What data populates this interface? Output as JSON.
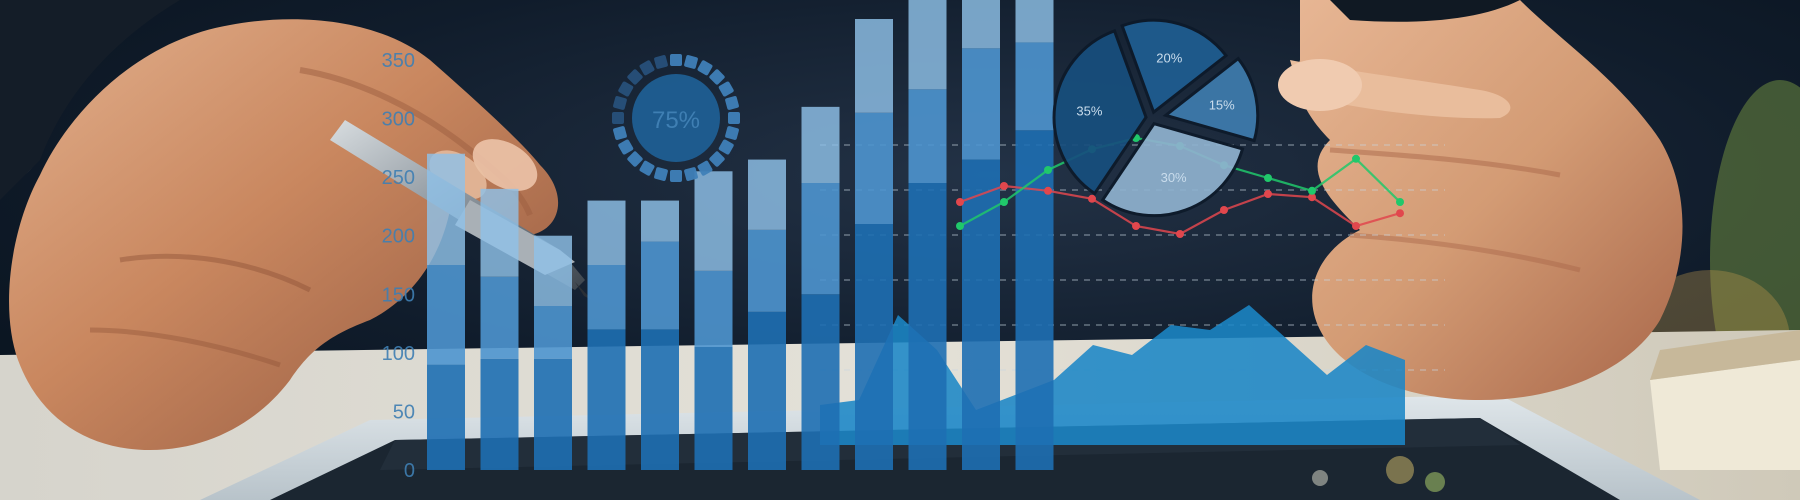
{
  "scene": {
    "description_tags": [
      "hands",
      "pen",
      "tablet",
      "holographic-charts"
    ]
  },
  "bar_overlay": {
    "y_ticks": [
      "0",
      "50",
      "100",
      "150",
      "200",
      "250",
      "300",
      "350"
    ],
    "bars": [
      {
        "segments": [
          90,
          85,
          95
        ]
      },
      {
        "segments": [
          95,
          70,
          75
        ]
      },
      {
        "segments": [
          95,
          45,
          60
        ]
      },
      {
        "segments": [
          120,
          55,
          55
        ]
      },
      {
        "segments": [
          120,
          75,
          35
        ]
      },
      {
        "segments": [
          105,
          65,
          85
        ]
      },
      {
        "segments": [
          135,
          70,
          60
        ]
      },
      {
        "segments": [
          150,
          95,
          65
        ]
      },
      {
        "segments": [
          210,
          95,
          80
        ]
      },
      {
        "segments": [
          245,
          80,
          80
        ]
      },
      {
        "segments": [
          265,
          95,
          85
        ]
      },
      {
        "segments": [
          290,
          75,
          90
        ]
      }
    ]
  },
  "gauge": {
    "label": "75%",
    "value": 0.75
  },
  "pie": {
    "slices": [
      {
        "label": "20%",
        "value": 20,
        "color": "#1f5e92"
      },
      {
        "label": "15%",
        "value": 15,
        "color": "#3e7cae"
      },
      {
        "label": "30%",
        "value": 30,
        "color": "#8fb2cf"
      },
      {
        "label": "35%",
        "value": 35,
        "color": "#174f7e"
      }
    ]
  },
  "area_overlay": {
    "values": [
      40,
      45,
      130,
      95,
      35,
      50,
      65,
      100,
      90,
      120,
      115,
      140,
      105,
      70,
      100,
      85
    ]
  },
  "line_overlay": {
    "red": [
      55,
      65,
      62,
      57,
      40,
      35,
      50,
      60,
      58,
      40,
      48
    ],
    "green": [
      40,
      55,
      75,
      88,
      95,
      90,
      78,
      70,
      62,
      82,
      55
    ]
  },
  "colors": {
    "bar_light": "#8fc1e8",
    "bar_mid": "#4e95cf",
    "bar_dark": "#1e6fb3",
    "area": "#1b86c6",
    "red_line": "#e1474d",
    "green_line": "#20c86b"
  }
}
